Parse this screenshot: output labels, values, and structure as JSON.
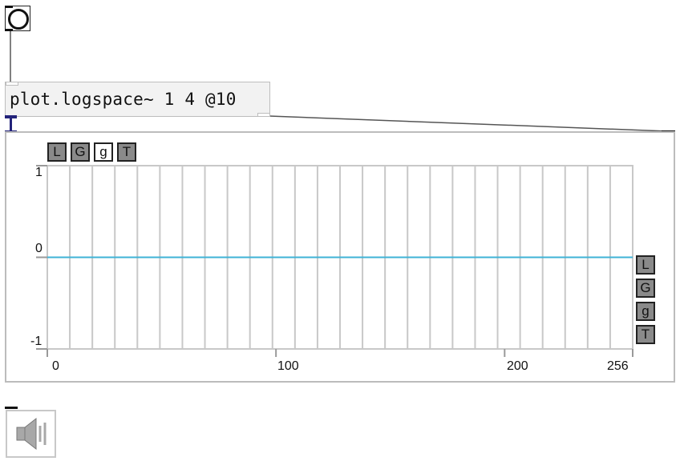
{
  "patch": {
    "object_text": "plot.logspace~ 1 4 @10"
  },
  "plot": {
    "top_controls": [
      "L",
      "G",
      "g",
      "T"
    ],
    "side_controls": [
      "L",
      "G",
      "g",
      "T"
    ],
    "y_labels": {
      "max": "1",
      "zero": "0",
      "min": "-1"
    },
    "x_labels": [
      "0",
      "100",
      "200",
      "256"
    ],
    "line_color": "#3fb3d6",
    "grid_color": "#c8c8c8"
  },
  "chart_data": {
    "type": "line",
    "x_range": [
      0,
      256
    ],
    "ylim": [
      -1,
      1
    ],
    "x_ticks": [
      0,
      100,
      200,
      256
    ],
    "y_ticks": [
      -1,
      0,
      1
    ],
    "grid": true,
    "series": [
      {
        "x": [
          0,
          256
        ],
        "values": [
          0,
          0
        ]
      }
    ]
  },
  "icons": {
    "bang": "bang-circle-icon",
    "dac": "speaker-icon"
  }
}
